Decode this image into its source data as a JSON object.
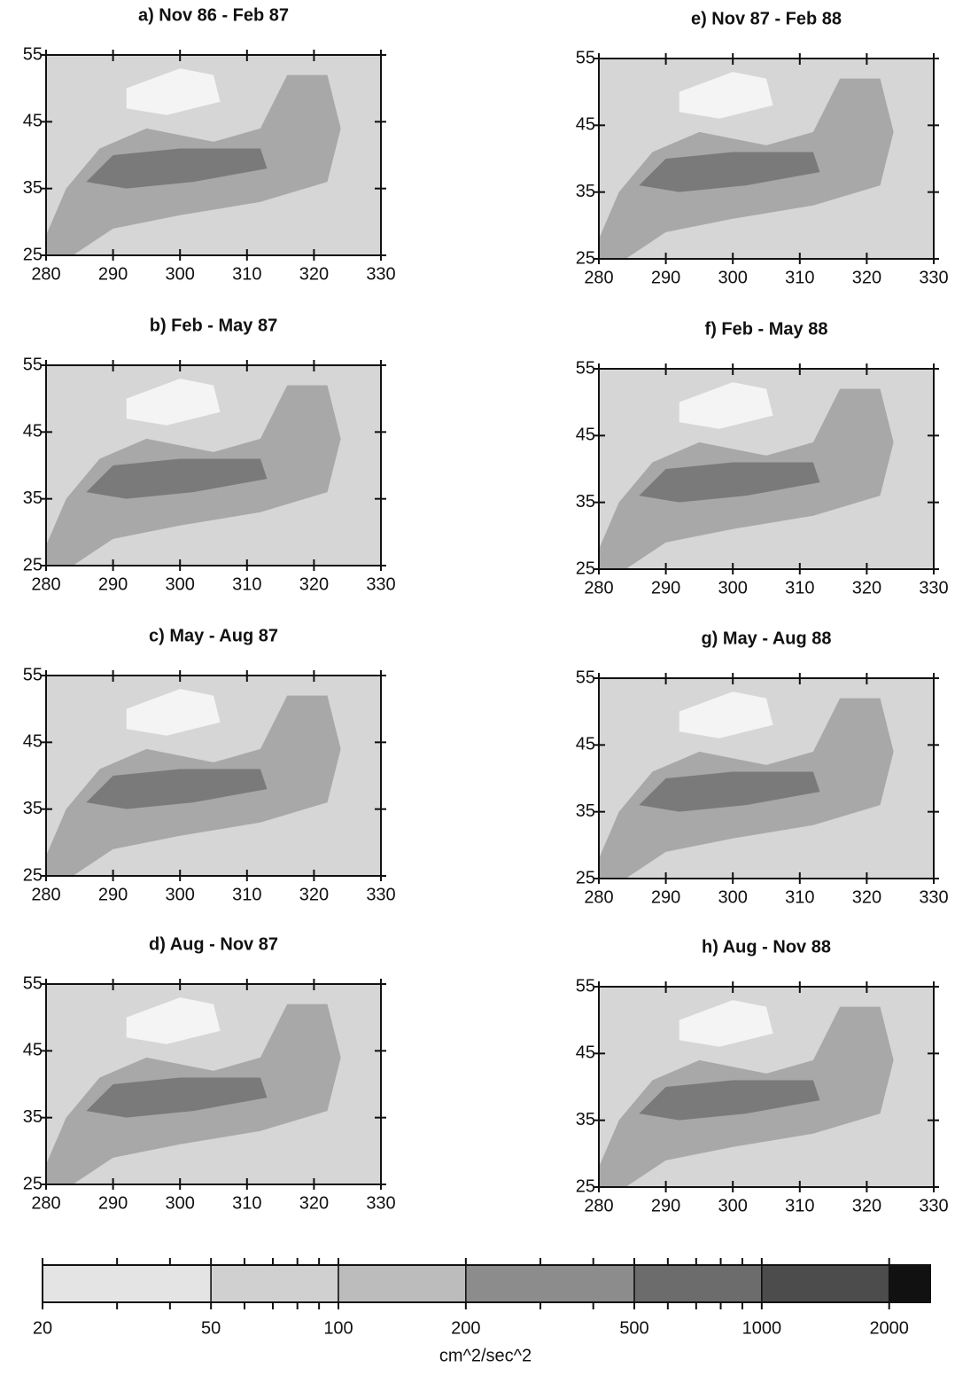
{
  "panels": [
    {
      "title": "a) Nov 86 - Feb 87"
    },
    {
      "title": "b) Feb - May 87"
    },
    {
      "title": "c) May - Aug 87"
    },
    {
      "title": "d) Aug - Nov 87"
    },
    {
      "title": "e) Nov 87 - Feb 88"
    },
    {
      "title": "f) Feb - May 88"
    },
    {
      "title": "g) May - Aug 88"
    },
    {
      "title": "h) Aug - Nov 88"
    }
  ],
  "axes": {
    "xlim": [
      280,
      330
    ],
    "xticks": [
      280,
      290,
      300,
      310,
      320,
      330
    ],
    "ylim": [
      25,
      55
    ],
    "yticks": [
      25,
      35,
      45,
      55
    ]
  },
  "colorbar": {
    "label": "cm^2/sec^2",
    "scale": "log",
    "xlim": [
      20,
      2500
    ],
    "ticks": [
      20,
      50,
      100,
      200,
      500,
      1000,
      2000
    ],
    "minor_ticks": [
      30,
      40,
      60,
      70,
      80,
      90,
      300,
      400,
      600,
      700,
      800,
      900
    ],
    "bounds": [
      20,
      50,
      100,
      200,
      500,
      1000,
      2000,
      2500
    ],
    "colors": [
      "#e4e4e4",
      "#d0d0d0",
      "#bcbcbc",
      "#8c8c8c",
      "#6c6c6c",
      "#4c4c4c",
      "#111111"
    ]
  }
}
